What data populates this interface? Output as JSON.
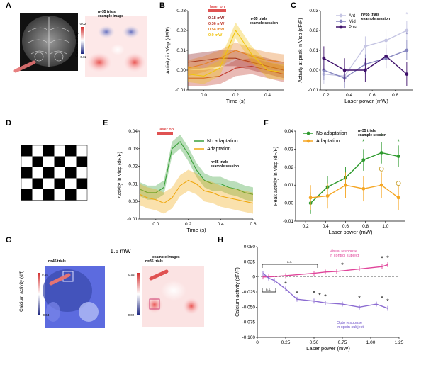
{
  "panels": {
    "A": {
      "letter": "A",
      "note_line1": "n=35 trials",
      "note_line2": "example image",
      "colorbar_label": "Calcium activity",
      "colorbar_max": "0.02",
      "colorbar_min": "-0.02"
    },
    "B": {
      "letter": "B",
      "laser_label": "laser on",
      "note_line1": "n=35 trials",
      "note_line2": "example session",
      "legend": [
        {
          "label": "0.18 mW",
          "color": "#8b1a1a"
        },
        {
          "label": "0.36 mW",
          "color": "#c0392b"
        },
        {
          "label": "0.54 mW",
          "color": "#e67e22"
        },
        {
          "label": "0.9 mW",
          "color": "#f1c40f"
        }
      ]
    },
    "C": {
      "letter": "C",
      "note_line1": "n=35 trials",
      "note_line2": "example session",
      "legend": [
        {
          "label": "Ant",
          "color": "#c5c5e3"
        },
        {
          "label": "Mid",
          "color": "#8585bf"
        },
        {
          "label": "Post",
          "color": "#3d0f6a"
        }
      ]
    },
    "D": {
      "letter": "D"
    },
    "E": {
      "letter": "E",
      "laser_label": "laser on",
      "note_line1": "n=35 trials",
      "note_line2": "example session",
      "legend": [
        {
          "label": "No adaptation",
          "color": "#3aa13a"
        },
        {
          "label": "Adaptation",
          "color": "#f0a810"
        }
      ]
    },
    "F": {
      "letter": "F",
      "note_line1": "n=35 trials",
      "note_line2": "example session",
      "legend": [
        {
          "label": "No adaptation",
          "color": "#2e9a2e"
        },
        {
          "label": "Adaptation",
          "color": "#f5a623"
        }
      ]
    },
    "G": {
      "letter": "G",
      "title": "1.5 mW",
      "subtitle": "example images",
      "left_note": "n=45 trials",
      "right_note": "n=35 trials",
      "left_colorbar_label": "Calcium activity (dff)",
      "left_colorbar_max": "0.04",
      "left_colorbar_min": "-0.04",
      "right_colorbar_max": "0.02",
      "right_colorbar_min": "-0.02"
    },
    "H": {
      "letter": "H",
      "ns_label": "n.s.",
      "pink_label_line1": "Visual response",
      "pink_label_line2": "in control subject",
      "purple_label_line1": "Opto response",
      "purple_label_line2": "in opsin subject"
    }
  },
  "chart_data": [
    {
      "id": "B",
      "type": "line",
      "xlabel": "Time (s)",
      "ylabel": "Activity in Visp (dF/F)",
      "xlim": [
        -0.1,
        0.5
      ],
      "ylim": [
        -0.01,
        0.03
      ],
      "xticks": [
        "0.0",
        "0.2",
        "0.4"
      ],
      "yticks": [
        "-0.01",
        "0.00",
        "0.01",
        "0.02",
        "0.03"
      ],
      "laser_on": [
        0.0,
        0.1
      ],
      "x": [
        -0.1,
        0.0,
        0.1,
        0.2,
        0.3,
        0.4,
        0.5
      ],
      "series": [
        {
          "name": "0.18 mW",
          "color": "#8b1a1a",
          "values": [
            0.004,
            0.005,
            0.006,
            0.006,
            0.004,
            0.002,
            0.0
          ],
          "err": 0.004
        },
        {
          "name": "0.36 mW",
          "color": "#c0392b",
          "values": [
            -0.004,
            -0.004,
            -0.003,
            0.001,
            0.002,
            0.0,
            -0.002
          ],
          "err": 0.004
        },
        {
          "name": "0.54 mW",
          "color": "#e67e22",
          "values": [
            0.001,
            0.003,
            0.006,
            0.01,
            0.007,
            0.005,
            0.004
          ],
          "err": 0.004
        },
        {
          "name": "0.9 mW",
          "color": "#f1c40f",
          "values": [
            -0.002,
            -0.003,
            0.001,
            0.02,
            0.008,
            0.0,
            -0.001
          ],
          "err": 0.004
        }
      ]
    },
    {
      "id": "C",
      "type": "line",
      "xlabel": "Laser power (mW)",
      "ylabel": "Activity at peak in Visp (dF/F)",
      "xlim": [
        0.15,
        0.95
      ],
      "ylim": [
        -0.01,
        0.03
      ],
      "xticks": [
        "0.2",
        "0.4",
        "0.6",
        "0.8"
      ],
      "yticks": [
        "-0.01",
        "0.00",
        "0.01",
        "0.02",
        "0.03"
      ],
      "x": [
        0.18,
        0.36,
        0.54,
        0.72,
        0.9
      ],
      "series": [
        {
          "name": "Ant",
          "color": "#c5c5e3",
          "values": [
            -0.002,
            -0.003,
            0.012,
            0.015,
            0.02
          ],
          "err": 0.005
        },
        {
          "name": "Mid",
          "color": "#8585bf",
          "values": [
            0.0,
            -0.004,
            0.003,
            0.006,
            0.01
          ],
          "err": 0.005
        },
        {
          "name": "Post",
          "color": "#3d0f6a",
          "values": [
            0.006,
            0.0,
            0.0,
            0.007,
            -0.002
          ],
          "err": 0.006
        }
      ],
      "stars": [
        {
          "x": 0.9,
          "y": 0.027,
          "color": "#c5c5e3"
        },
        {
          "x": 0.9,
          "y": 0.017,
          "color": "#8585bf"
        }
      ]
    },
    {
      "id": "E",
      "type": "line",
      "xlabel": "Time (s)",
      "ylabel": "Activity in Visp (dF/F)",
      "xlim": [
        -0.1,
        0.6
      ],
      "ylim": [
        -0.01,
        0.04
      ],
      "xticks": [
        "0.0",
        "0.2",
        "0.4",
        "0.6"
      ],
      "yticks": [
        "-0.01",
        "0.00",
        "0.01",
        "0.02",
        "0.03",
        "0.04"
      ],
      "laser_on": [
        0.07,
        0.17
      ],
      "x": [
        -0.1,
        -0.05,
        0.0,
        0.05,
        0.1,
        0.15,
        0.2,
        0.25,
        0.3,
        0.35,
        0.4,
        0.45,
        0.5,
        0.55,
        0.6
      ],
      "series": [
        {
          "name": "No adaptation",
          "color": "#3aa13a",
          "values": [
            0.007,
            0.005,
            0.005,
            0.008,
            0.03,
            0.034,
            0.027,
            0.018,
            0.012,
            0.01,
            0.01,
            0.008,
            0.007,
            0.005,
            0.004
          ],
          "err": 0.004
        },
        {
          "name": "Adaptation",
          "color": "#f0a810",
          "values": [
            0.004,
            0.002,
            0.001,
            -0.001,
            0.002,
            0.009,
            0.012,
            0.01,
            0.006,
            0.005,
            0.003,
            0.002,
            0.001,
            0.0,
            -0.001
          ],
          "err": 0.006
        }
      ]
    },
    {
      "id": "F",
      "type": "line",
      "xlabel": "Laser power (mW)",
      "ylabel": "Peak activity in Visp (dF/F)",
      "xlim": [
        0.1,
        1.2
      ],
      "ylim": [
        -0.01,
        0.04
      ],
      "xticks": [
        "0.2",
        "0.4",
        "0.6",
        "0.8",
        "1.0"
      ],
      "yticks": [
        "-0.01",
        "0.00",
        "0.01",
        "0.02",
        "0.03",
        "0.04"
      ],
      "x": [
        0.25,
        0.42,
        0.6,
        0.78,
        0.96,
        1.13
      ],
      "series": [
        {
          "name": "No adaptation",
          "color": "#2e9a2e",
          "values": [
            0.0,
            0.009,
            0.014,
            0.024,
            0.028,
            0.026
          ],
          "err": 0.006
        },
        {
          "name": "Adaptation",
          "color": "#f5a623",
          "values": [
            0.003,
            0.004,
            0.01,
            0.008,
            0.01,
            0.003
          ],
          "err": 0.007
        }
      ],
      "stars": [
        {
          "x": 0.78,
          "y": 0.033,
          "color": "#2e9a2e"
        },
        {
          "x": 0.96,
          "y": 0.036,
          "color": "#2e9a2e"
        },
        {
          "x": 1.13,
          "y": 0.033,
          "color": "#2e9a2e"
        }
      ],
      "circles": [
        {
          "x": 0.96,
          "y": 0.019,
          "color": "#c49a20"
        },
        {
          "x": 1.13,
          "y": 0.011,
          "color": "#c49a20"
        }
      ]
    },
    {
      "id": "H",
      "type": "line",
      "xlabel": "Laser power (mW)",
      "ylabel": "Calcium activity (dF/F)",
      "xlim": [
        0.0,
        1.25
      ],
      "ylim": [
        -0.1,
        0.05
      ],
      "xticks": [
        "0",
        "0.25",
        "0.50",
        "0.75",
        "1.00",
        "1.25"
      ],
      "yticks": [
        "-0.100",
        "-0.075",
        "-0.050",
        "-0.025",
        "0",
        "0.025",
        "0.050"
      ],
      "series": [
        {
          "name": "Visual response in control subject",
          "color": "#e0449a",
          "x": [
            0.05,
            0.1,
            0.25,
            0.5,
            0.6,
            0.7,
            0.9,
            1.1,
            1.15
          ],
          "values": [
            0.0,
            0.0,
            0.002,
            0.006,
            0.008,
            0.009,
            0.013,
            0.017,
            0.02
          ],
          "err": 0.004
        },
        {
          "name": "Opto response in opsin subject",
          "color": "#8b6bd1",
          "x": [
            0.05,
            0.1,
            0.15,
            0.25,
            0.35,
            0.5,
            0.6,
            0.75,
            0.9,
            1.05,
            1.15
          ],
          "values": [
            0.006,
            -0.002,
            -0.006,
            -0.02,
            -0.037,
            -0.04,
            -0.043,
            -0.045,
            -0.05,
            -0.045,
            -0.052
          ],
          "err": 0.004
        }
      ],
      "stars": [
        {
          "x": 0.25,
          "y": -0.015,
          "color": "#000"
        },
        {
          "x": 0.35,
          "y": -0.031,
          "color": "#000"
        },
        {
          "x": 0.5,
          "y": -0.03,
          "color": "#000"
        },
        {
          "x": 0.55,
          "y": -0.034,
          "color": "#000"
        },
        {
          "x": 0.6,
          "y": -0.036,
          "color": "#000"
        },
        {
          "x": 0.9,
          "y": -0.039,
          "color": "#000"
        },
        {
          "x": 1.1,
          "y": -0.039,
          "color": "#000"
        },
        {
          "x": 1.15,
          "y": -0.044,
          "color": "#000"
        },
        {
          "x": 0.75,
          "y": 0.016,
          "color": "#000"
        },
        {
          "x": 1.1,
          "y": 0.027,
          "color": "#000"
        },
        {
          "x": 1.15,
          "y": 0.028,
          "color": "#000"
        }
      ]
    }
  ]
}
